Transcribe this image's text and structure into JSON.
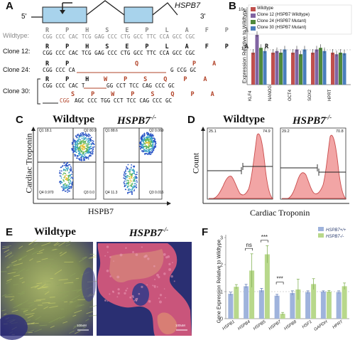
{
  "panels": {
    "A": "A",
    "B": "B",
    "C": "C",
    "D": "D",
    "E": "E",
    "F": "F"
  },
  "panelA": {
    "gene": "HSPB7",
    "five_prime": "5'",
    "three_prime": "3'",
    "wildtype_label": "Wildtype:",
    "clone12_label": "Clone 12:",
    "clone24_label": "Clone 24:",
    "clone30_label": "Clone 30:",
    "wt_aa": "R    P    H    S    E    P    L    A    F    P    A    R",
    "wt_nt": "CGG CCC CAC TCG GAG CCC CTG GCC TTC CCA GCC CGC",
    "c12_aa": "R    P    H    S    E    P    L    A    F    P    A    R",
    "c12_nt": "CGG CCC CAC TCG GAG CCC CTG GCC TTC CCA GCC CGC",
    "c24_aa_black": "R    P",
    "c24_aa_red1": "Q",
    "c24_aa_red2": "P    A",
    "c24_nt": "CGG CCC CA",
    "c24_nt_end": "G CCG GC",
    "c30a_aa_black": "R    P    H",
    "c30a_aa_red": "W    P    S    Q    P    A",
    "c30a_nt": "CGG CCC CAC T",
    "c30a_nt_end": "GG CCT TCC CAG CCC GC",
    "c30b_aa_red": "S    P    W    P    S    Q    P    A",
    "c30b_nt_red": "CGG",
    "c30b_nt": "AGC CCC TGG CCT TCC CAG CCC GC"
  },
  "panelB": {
    "ylabel": "Expression Relative to Wildtype",
    "y_tick_top": "10",
    "y_tick_mid": "1",
    "legend": [
      "Wildtype",
      "Clone 12 (HSPB7 Wildtype)",
      "Clone 24 (HSPB7 Mutant)",
      "Clone 30 (HSPB7 Mutant)"
    ],
    "colors": [
      "#c0504d",
      "#8064a2",
      "#4f8a3c",
      "#4a7ebb"
    ]
  },
  "panelC": {
    "title_left": "Wildtype",
    "title_right": "HSPB7",
    "title_sup": "-/-",
    "ylabel": "Cardiac Troponin",
    "xlabel": "HSPB7",
    "left_quads": [
      "Q1 18.1",
      "Q2 80.9",
      "Q4 0.970",
      "Q3 0.0"
    ],
    "right_quads": [
      "Q1 88.6",
      "Q2 0.069",
      "Q4 11.3",
      "Q3 0.016"
    ]
  },
  "panelD": {
    "title_left": "Wildtype",
    "title_right": "HSPB7",
    "title_sup": "-/-",
    "ylabel": "Count",
    "xlabel": "Cardiac Troponin",
    "left_vals": [
      "25.1",
      "74.9"
    ],
    "right_vals": [
      "29.2",
      "70.8"
    ]
  },
  "panelE": {
    "title_left": "Wildtype",
    "title_right": "HSPB7",
    "title_sup": "-/-",
    "scale": "100uM"
  },
  "chart_data": {
    "type": "bar",
    "title": "",
    "ylabel": "Gene Expression Relative to Wildtype",
    "ylim": [
      0,
      3
    ],
    "yticks": [
      "0",
      "1",
      "2",
      "3"
    ],
    "categories": [
      "HSPB1",
      "HSPB4",
      "HSPB5",
      "HSPB7",
      "HSPB8",
      "HSF1",
      "GAPDH",
      "HPRT"
    ],
    "series": [
      {
        "name": "HSPB7+/+",
        "color": "#9fb3dc",
        "values": [
          0.92,
          1.2,
          1.05,
          0.85,
          0.95,
          0.98,
          1.0,
          0.98
        ]
      },
      {
        "name": "HSPB7-/-",
        "color": "#b8d88b",
        "values": [
          1.18,
          1.78,
          2.38,
          0.18,
          1.08,
          1.28,
          1.0,
          1.2
        ]
      }
    ],
    "errors": [
      [
        0.06,
        0.07,
        0.07,
        0.05,
        0.08,
        0.05,
        0.03,
        0.05
      ],
      [
        0.08,
        0.62,
        0.32,
        0.05,
        0.38,
        0.2,
        0.04,
        0.12
      ]
    ],
    "annotations": [
      "ns",
      "***",
      "***"
    ]
  }
}
